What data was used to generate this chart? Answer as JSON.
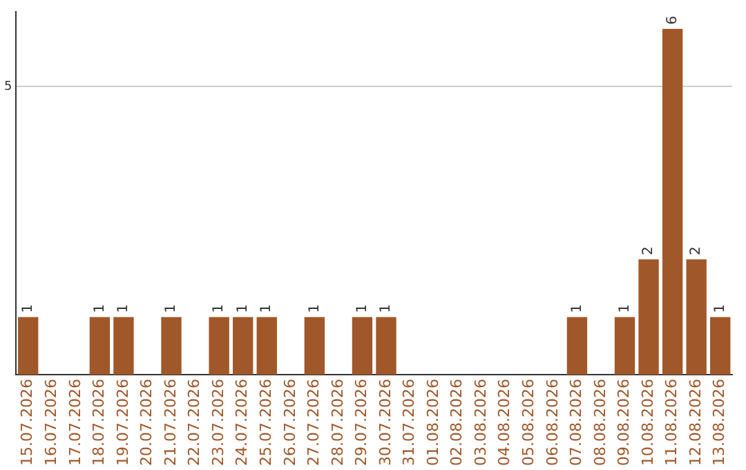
{
  "chart_data": {
    "type": "bar",
    "categories": [
      "15.07.2026",
      "16.07.2026",
      "17.07.2026",
      "18.07.2026",
      "19.07.2026",
      "20.07.2026",
      "21.07.2026",
      "22.07.2026",
      "23.07.2026",
      "24.07.2026",
      "25.07.2026",
      "26.07.2026",
      "27.07.2026",
      "28.07.2026",
      "29.07.2026",
      "30.07.2026",
      "31.07.2026",
      "01.08.2026",
      "02.08.2026",
      "03.08.2026",
      "04.08.2026",
      "05.08.2026",
      "06.08.2026",
      "07.08.2026",
      "08.08.2026",
      "09.08.2026",
      "10.08.2026",
      "11.08.2026",
      "12.08.2026",
      "13.08.2026"
    ],
    "values": [
      1,
      0,
      0,
      1,
      1,
      0,
      1,
      0,
      1,
      1,
      1,
      0,
      1,
      0,
      1,
      1,
      0,
      0,
      0,
      0,
      0,
      0,
      0,
      1,
      0,
      1,
      2,
      6,
      2,
      1
    ],
    "value_labels": [
      "1",
      null,
      null,
      "1",
      "1",
      null,
      "1",
      null,
      "1",
      "1",
      "1",
      null,
      "1",
      null,
      "1",
      "1",
      null,
      null,
      null,
      null,
      null,
      null,
      null,
      "1",
      null,
      "1",
      "2",
      "6",
      "2",
      "1"
    ],
    "color": "#a0572a",
    "ylim": [
      0,
      6.3
    ],
    "yticks": [
      5
    ],
    "grid": "y",
    "legend": false
  }
}
